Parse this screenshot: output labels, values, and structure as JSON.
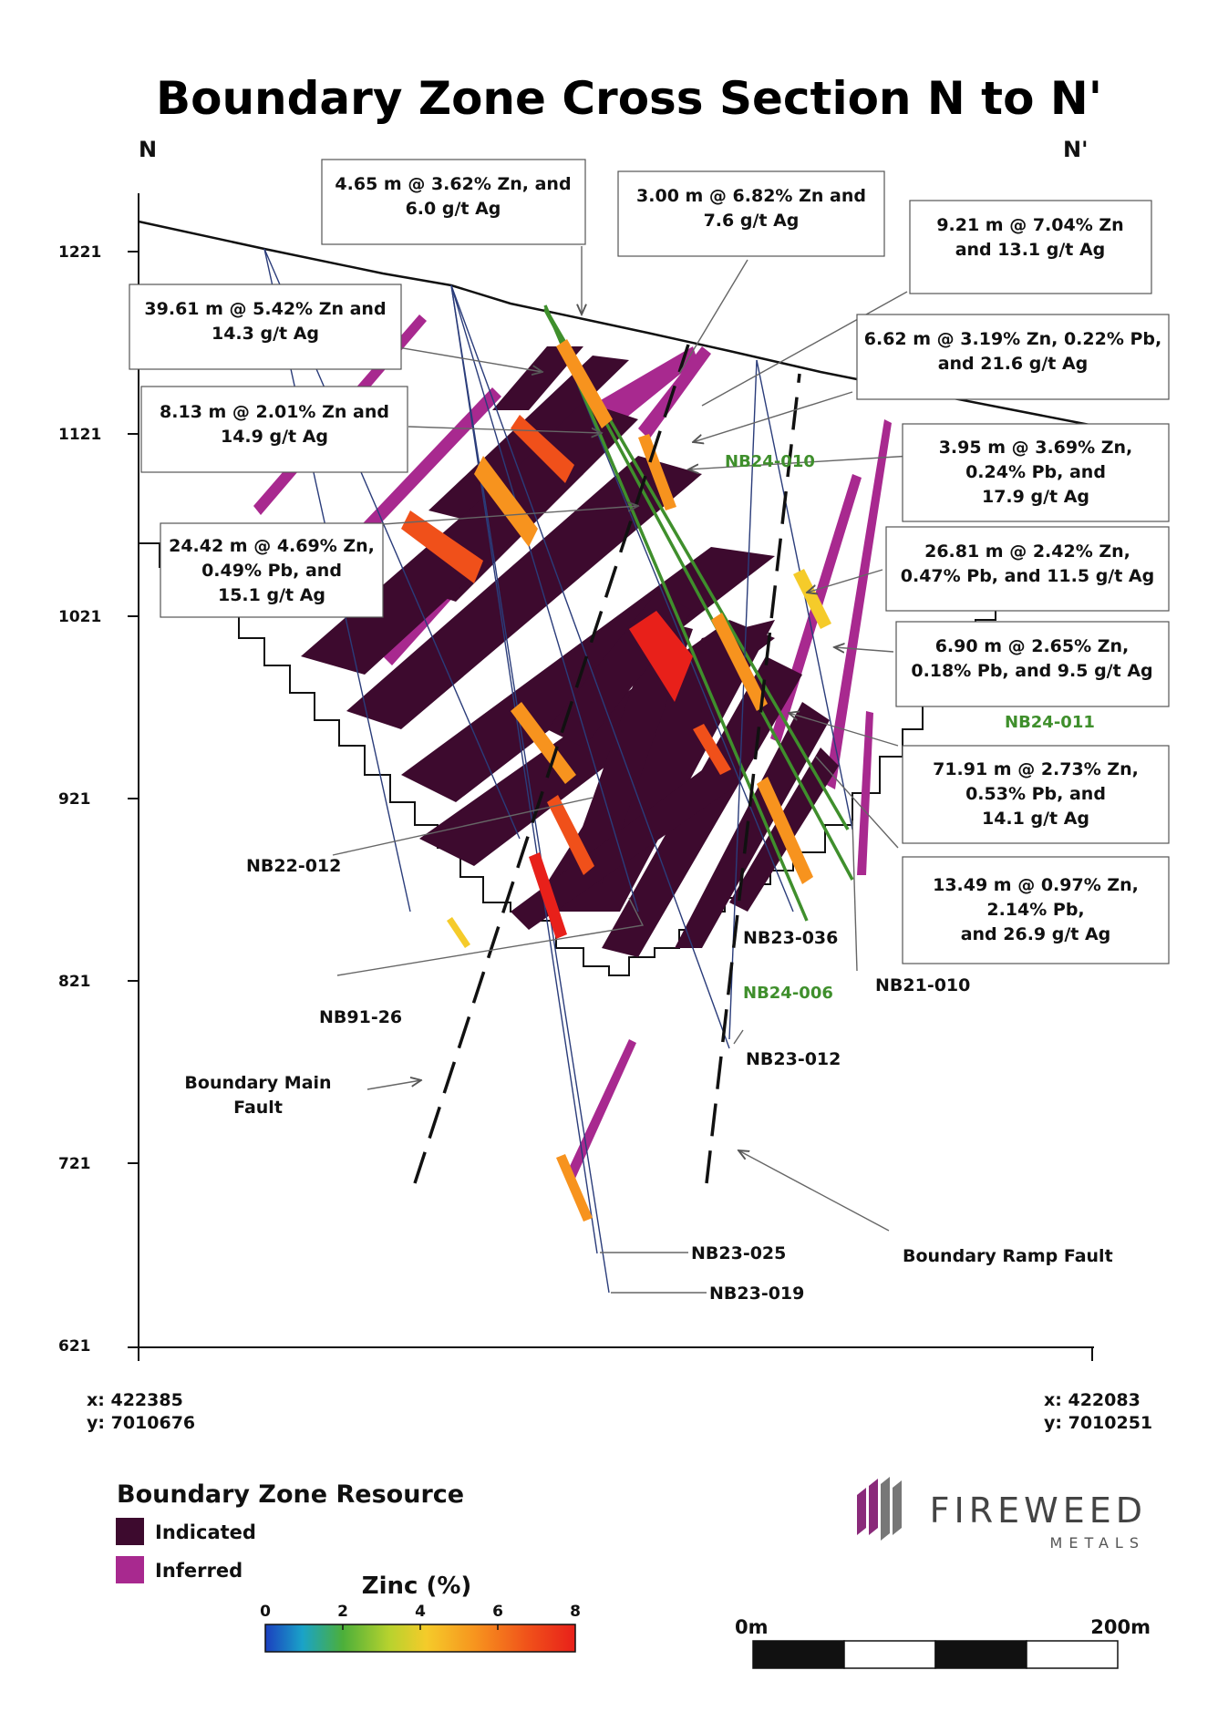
{
  "title": "Boundary Zone Cross Section N to N'",
  "section_ends": {
    "left": "N",
    "right": "N'"
  },
  "elevation_ticks": [
    "1221",
    "1121",
    "1021",
    "921",
    "821",
    "721",
    "621"
  ],
  "coords": {
    "left_x": "x: 422385",
    "left_y": "y: 7010676",
    "right_x": "x: 422083",
    "right_y": "y: 7010251"
  },
  "callouts": {
    "c1": [
      "4.65 m @ 3.62% Zn, and",
      "6.0 g/t Ag"
    ],
    "c2": [
      "3.00 m @ 6.82% Zn and",
      "7.6 g/t Ag"
    ],
    "c3": [
      "9.21 m @ 7.04% Zn",
      "and 13.1 g/t Ag"
    ],
    "c4": [
      "39.61 m @ 5.42% Zn and",
      "14.3 g/t Ag"
    ],
    "c5": [
      "6.62 m @ 3.19% Zn, 0.22% Pb,",
      "and 21.6 g/t Ag"
    ],
    "c6": [
      "8.13 m @ 2.01% Zn and",
      "14.9 g/t Ag"
    ],
    "c7": [
      "3.95 m @ 3.69% Zn,",
      "0.24% Pb, and",
      "17.9 g/t Ag"
    ],
    "c8": [
      "24.42 m @ 4.69% Zn,",
      "0.49% Pb, and",
      "15.1 g/t Ag"
    ],
    "c9": [
      "26.81 m @ 2.42% Zn,",
      "0.47% Pb, and 11.5 g/t Ag"
    ],
    "c10": [
      "6.90 m @ 2.65% Zn,",
      "0.18% Pb, and 9.5 g/t Ag"
    ],
    "c11": [
      "71.91 m @ 2.73% Zn,",
      "0.53% Pb, and",
      "14.1 g/t Ag"
    ],
    "c12": [
      "13.49 m @ 0.97% Zn,",
      "2.14% Pb,",
      "and 26.9 g/t Ag"
    ]
  },
  "drillholes": {
    "nb24_010": "NB24-010",
    "nb24_011": "NB24-011",
    "nb24_006": "NB24-006",
    "nb22_012": "NB22-012",
    "nb91_26": "NB91-26",
    "nb23_036": "NB23-036",
    "nb21_010": "NB21-010",
    "nb23_012": "NB23-012",
    "nb23_025": "NB23-025",
    "nb23_019": "NB23-019"
  },
  "faults": {
    "main": [
      "Boundary Main",
      "Fault"
    ],
    "ramp": "Boundary Ramp Fault"
  },
  "legend": {
    "title": "Boundary Zone Resource",
    "indicated": "Indicated",
    "inferred": "Inferred",
    "indicated_color": "#3d0a2e",
    "inferred_color": "#a8298f"
  },
  "zinc_scale": {
    "title": "Zinc (%)",
    "ticks": [
      "0",
      "2",
      "4",
      "6",
      "8"
    ],
    "colors": [
      "#1b3fbf",
      "#1aa3c8",
      "#4caf3a",
      "#b7d22e",
      "#f5cb2a",
      "#f7931e",
      "#f0501a",
      "#e8201a"
    ]
  },
  "scale_bar": {
    "start": "0m",
    "end": "200m"
  },
  "logo": {
    "name": "FIREWEED",
    "sub": "METALS",
    "color": "#8a2a7a"
  }
}
